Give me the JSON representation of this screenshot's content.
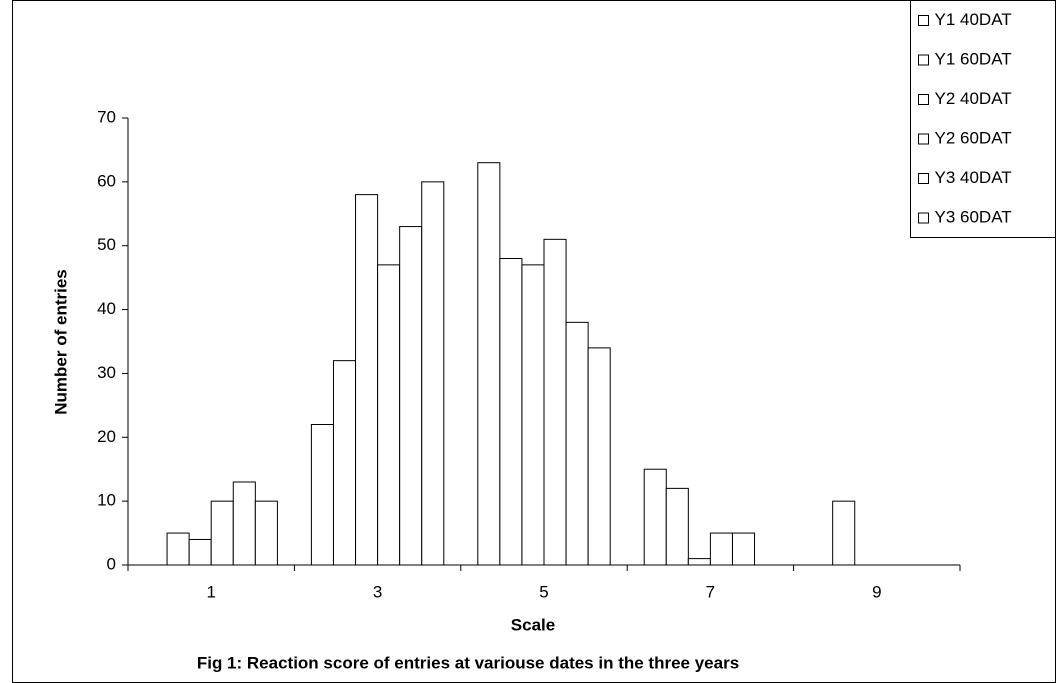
{
  "chart_data": {
    "type": "bar",
    "title": "Fig 1: Reaction score of entries at variouse dates in the three years",
    "x_label": "Scale",
    "y_label": "Number of entries",
    "categories": [
      "1",
      "3",
      "5",
      "7",
      "9"
    ],
    "series": [
      {
        "name": "Y1 40DAT",
        "color": "#ffffff",
        "values": [
          0,
          22,
          63,
          15,
          0
        ]
      },
      {
        "name": "Y1 60DAT",
        "color": "#ffffff",
        "values": [
          5,
          32,
          48,
          12,
          10
        ]
      },
      {
        "name": "Y2 40DAT",
        "color": "#ffffff",
        "values": [
          4,
          58,
          47,
          1,
          0
        ]
      },
      {
        "name": "Y2 60DAT",
        "color": "#ffffff",
        "values": [
          10,
          47,
          51,
          5,
          0
        ]
      },
      {
        "name": "Y3 40DAT",
        "color": "#ffffff",
        "values": [
          13,
          53,
          38,
          5,
          0
        ]
      },
      {
        "name": "Y3 60DAT",
        "color": "#ffffff",
        "values": [
          10,
          60,
          34,
          0,
          0
        ]
      }
    ],
    "ylim": [
      0,
      70
    ],
    "yticks": [
      0,
      10,
      20,
      30,
      40,
      50,
      60,
      70
    ],
    "grid": false,
    "legend": "top-right"
  }
}
